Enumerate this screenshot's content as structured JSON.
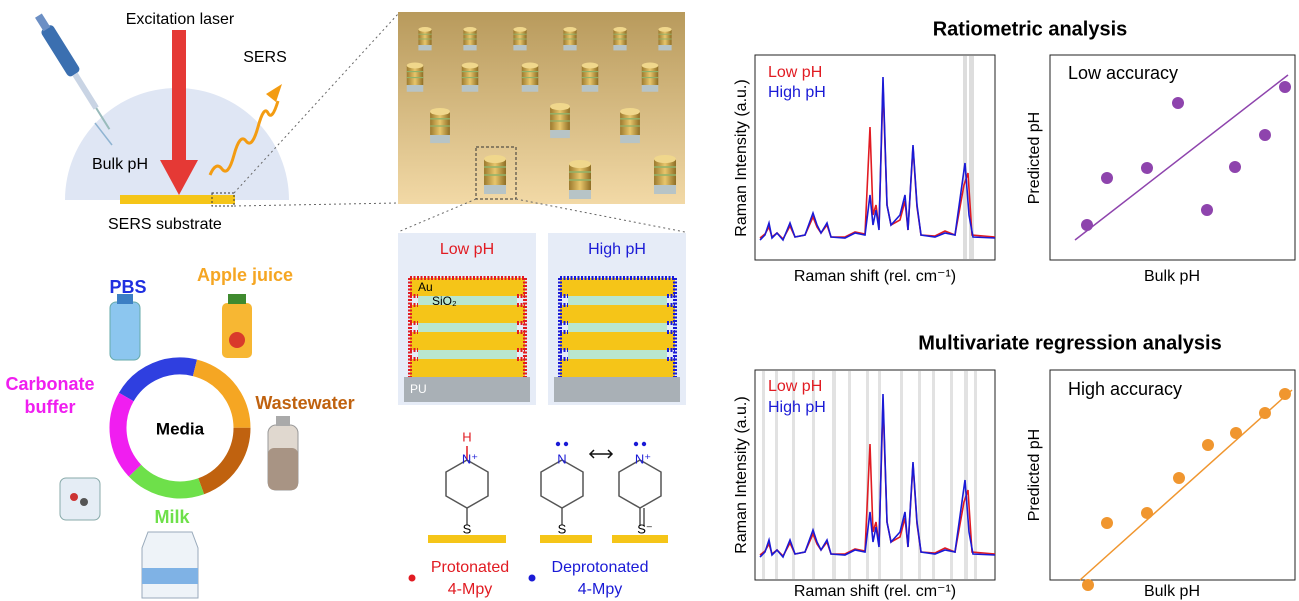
{
  "schematic": {
    "laser": "Excitation laser",
    "sers": "SERS",
    "bulk_ph": "Bulk pH",
    "substrate": "SERS substrate"
  },
  "media": {
    "center": "Media",
    "items": [
      {
        "lines": [
          "PBS"
        ]
      },
      {
        "lines": [
          "Apple juice"
        ]
      },
      {
        "lines": [
          "Wastewater"
        ]
      },
      {
        "lines": [
          "Milk"
        ]
      },
      {
        "lines": [
          "Carbonate",
          "buffer"
        ]
      }
    ]
  },
  "cross_section": {
    "low_ph": "Low pH",
    "high_ph": "High pH",
    "au": "Au",
    "sio2": "SiO₂",
    "pu": "PU"
  },
  "molecules": {
    "h": "H",
    "n_plus": "N⁺",
    "n": "N",
    "s": "S",
    "s_minus": "S⁻",
    "protonated": [
      "Protonated",
      "4-Mpy"
    ],
    "deprotonated": [
      "Deprotonated",
      "4-Mpy"
    ]
  },
  "panels": [
    {
      "title": "Ratiometric analysis",
      "legend": [
        "Low pH",
        "High pH"
      ],
      "y_label": "Raman Intensity (a.u.)",
      "x_label": "Raman shift (rel. cm⁻¹)",
      "accuracy": "Low accuracy",
      "scatter_y_label": "Predicted pH",
      "scatter_x_label": "Bulk pH"
    },
    {
      "title": "Multivariate regression analysis",
      "legend": [
        "Low pH",
        "High pH"
      ],
      "y_label": "Raman Intensity (a.u.)",
      "x_label": "Raman shift (rel. cm⁻¹)",
      "accuracy": "High accuracy",
      "scatter_y_label": "Predicted pH",
      "scatter_x_label": "Bulk pH"
    }
  ]
}
